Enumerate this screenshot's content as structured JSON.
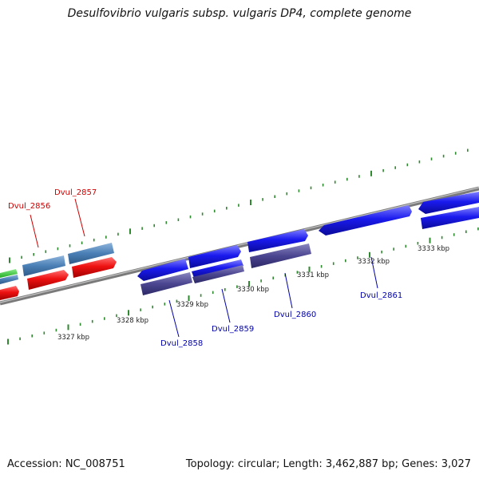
{
  "title": "Desulfovibrio vulgaris subsp. vulgaris DP4, complete genome",
  "footer": {
    "accession": "Accession: NC_008751",
    "summary": "Topology: circular; Length: 3,462,887 bp; Genes: 3,027"
  },
  "colors": {
    "backbone": "#8c8c8c",
    "tick": "#2f8a2f",
    "cds_forward": "#1a1aee",
    "rna_forward": "#4a7fb5",
    "cds_reverse_blue": "#4b4690",
    "cds_reverse_red": "#ee1111",
    "label_red": "#cc0000",
    "label_blue": "#0000aa",
    "gene_green": "#33cc33"
  },
  "scale_labels": [
    "3327 kbp",
    "3328 kbp",
    "3329 kbp",
    "3330 kbp",
    "3331 kbp",
    "3332 kbp",
    "3333 kbp"
  ],
  "gene_labels": [
    {
      "text": "Dvul_2856",
      "color": "#cc0000"
    },
    {
      "text": "Dvul_2857",
      "color": "#cc0000"
    },
    {
      "text": "Dvul_2858",
      "color": "#0000aa"
    },
    {
      "text": "Dvul_2859",
      "color": "#0000aa"
    },
    {
      "text": "Dvul_2860",
      "color": "#0000aa"
    },
    {
      "text": "Dvul_2861",
      "color": "#0000aa"
    }
  ]
}
